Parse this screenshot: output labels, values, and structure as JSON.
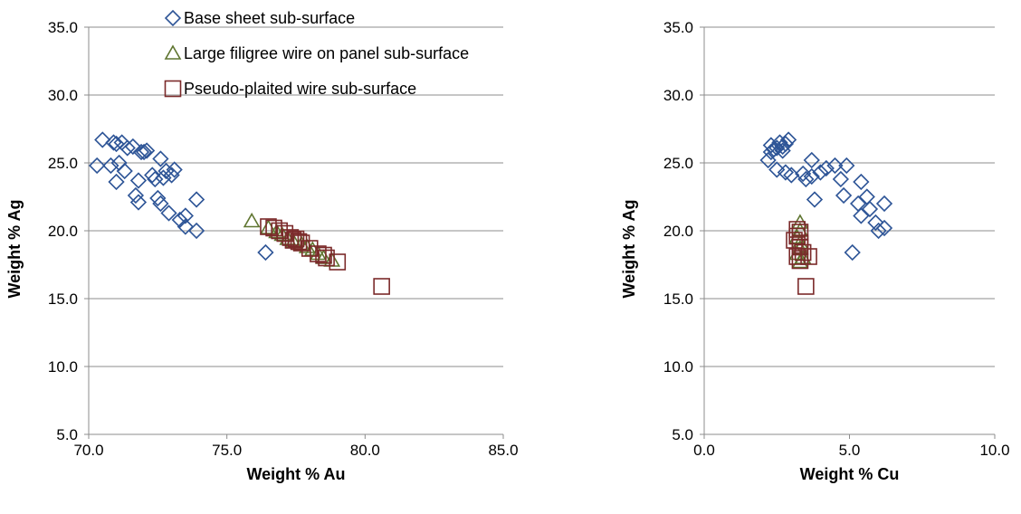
{
  "colors": {
    "base_sheet": "#2E5597",
    "filigree": "#5F7530",
    "pseudo_plaited": "#7B2A2A",
    "grid": "#8C8C8C"
  },
  "chart_data": [
    {
      "type": "scatter",
      "title": "",
      "xlabel": "Weight % Au",
      "ylabel": "Weight % Ag",
      "xlim": [
        70,
        85
      ],
      "ylim": [
        5,
        35
      ],
      "xticks": [
        "70.0",
        "75.0",
        "80.0",
        "85.0"
      ],
      "yticks": [
        "5.0",
        "10.0",
        "15.0",
        "20.0",
        "25.0",
        "30.0",
        "35.0"
      ],
      "grid": "horizontal",
      "legend": "top-left",
      "series": [
        {
          "name": "Base sheet sub-surface",
          "marker": "diamond",
          "points": [
            [
              70.3,
              24.8
            ],
            [
              70.5,
              26.7
            ],
            [
              70.8,
              24.8
            ],
            [
              70.9,
              26.5
            ],
            [
              71.0,
              26.4
            ],
            [
              71.0,
              23.6
            ],
            [
              71.1,
              25.0
            ],
            [
              71.2,
              26.5
            ],
            [
              71.3,
              24.4
            ],
            [
              71.4,
              26.1
            ],
            [
              71.6,
              26.2
            ],
            [
              71.7,
              22.6
            ],
            [
              71.8,
              22.1
            ],
            [
              71.8,
              23.7
            ],
            [
              71.9,
              25.8
            ],
            [
              72.0,
              25.8
            ],
            [
              72.1,
              25.9
            ],
            [
              72.3,
              24.1
            ],
            [
              72.4,
              23.8
            ],
            [
              72.5,
              22.4
            ],
            [
              72.6,
              25.3
            ],
            [
              72.6,
              22.0
            ],
            [
              72.7,
              23.9
            ],
            [
              72.8,
              24.4
            ],
            [
              72.9,
              21.3
            ],
            [
              73.0,
              24.1
            ],
            [
              73.1,
              24.5
            ],
            [
              73.3,
              20.8
            ],
            [
              73.5,
              21.1
            ],
            [
              73.5,
              20.3
            ],
            [
              73.9,
              22.3
            ],
            [
              73.9,
              20.0
            ],
            [
              76.4,
              18.4
            ]
          ]
        },
        {
          "name": "Large filigree wire on panel sub-surface",
          "marker": "triangle",
          "points": [
            [
              75.9,
              20.7
            ],
            [
              76.5,
              20.2
            ],
            [
              76.8,
              19.9
            ],
            [
              77.0,
              19.7
            ],
            [
              77.2,
              19.4
            ],
            [
              77.4,
              19.2
            ],
            [
              77.7,
              19.0
            ],
            [
              77.9,
              18.8
            ],
            [
              78.1,
              18.6
            ],
            [
              78.3,
              18.3
            ],
            [
              78.5,
              18.0
            ],
            [
              78.8,
              17.8
            ]
          ]
        },
        {
          "name": "Pseudo-plaited wire  sub-surface",
          "marker": "square",
          "points": [
            [
              76.5,
              20.3
            ],
            [
              76.7,
              20.2
            ],
            [
              76.9,
              20.0
            ],
            [
              77.1,
              19.8
            ],
            [
              77.3,
              19.5
            ],
            [
              77.4,
              19.3
            ],
            [
              77.5,
              19.4
            ],
            [
              77.6,
              19.2
            ],
            [
              77.7,
              19.1
            ],
            [
              78.0,
              18.7
            ],
            [
              78.3,
              18.3
            ],
            [
              78.5,
              18.2
            ],
            [
              78.6,
              18.0
            ],
            [
              79.0,
              17.7
            ],
            [
              80.6,
              15.9
            ]
          ]
        }
      ]
    },
    {
      "type": "scatter",
      "title": "",
      "xlabel": "Weight % Cu",
      "ylabel": "Weight % Ag",
      "xlim": [
        0,
        10
      ],
      "ylim": [
        5,
        35
      ],
      "xticks": [
        "0.0",
        "5.0",
        "10.0"
      ],
      "yticks": [
        "5.0",
        "10.0",
        "15.0",
        "20.0",
        "25.0",
        "30.0",
        "35.0"
      ],
      "grid": "horizontal",
      "series": [
        {
          "name": "Base sheet sub-surface",
          "marker": "diamond",
          "points": [
            [
              2.2,
              25.2
            ],
            [
              2.3,
              25.8
            ],
            [
              2.3,
              26.3
            ],
            [
              2.4,
              26.0
            ],
            [
              2.5,
              24.5
            ],
            [
              2.5,
              26.1
            ],
            [
              2.6,
              26.5
            ],
            [
              2.7,
              26.2
            ],
            [
              2.7,
              25.9
            ],
            [
              2.8,
              26.4
            ],
            [
              2.8,
              24.3
            ],
            [
              2.9,
              26.7
            ],
            [
              3.0,
              24.1
            ],
            [
              3.4,
              24.2
            ],
            [
              3.5,
              23.8
            ],
            [
              3.7,
              25.2
            ],
            [
              3.7,
              24.0
            ],
            [
              3.8,
              22.3
            ],
            [
              4.0,
              24.3
            ],
            [
              4.2,
              24.6
            ],
            [
              4.5,
              24.8
            ],
            [
              4.7,
              23.8
            ],
            [
              4.8,
              22.6
            ],
            [
              4.9,
              24.8
            ],
            [
              5.1,
              18.4
            ],
            [
              5.3,
              22.0
            ],
            [
              5.4,
              23.6
            ],
            [
              5.4,
              21.1
            ],
            [
              5.6,
              22.5
            ],
            [
              5.7,
              21.6
            ],
            [
              5.9,
              20.6
            ],
            [
              6.0,
              20.0
            ],
            [
              6.2,
              22.0
            ],
            [
              6.2,
              20.2
            ]
          ]
        },
        {
          "name": "Large filigree wire on panel sub-surface",
          "marker": "triangle",
          "points": [
            [
              3.3,
              20.6
            ],
            [
              3.3,
              20.0
            ],
            [
              3.2,
              19.5
            ],
            [
              3.3,
              19.1
            ],
            [
              3.3,
              18.7
            ],
            [
              3.2,
              18.3
            ],
            [
              3.4,
              18.0
            ],
            [
              3.3,
              17.7
            ]
          ]
        },
        {
          "name": "Pseudo-plaited wire  sub-surface",
          "marker": "square",
          "points": [
            [
              3.1,
              19.3
            ],
            [
              3.2,
              20.1
            ],
            [
              3.2,
              19.6
            ],
            [
              3.3,
              19.9
            ],
            [
              3.3,
              19.1
            ],
            [
              3.3,
              18.8
            ],
            [
              3.2,
              18.1
            ],
            [
              3.4,
              18.4
            ],
            [
              3.3,
              17.8
            ],
            [
              3.6,
              18.1
            ],
            [
              3.5,
              15.9
            ]
          ]
        }
      ]
    }
  ]
}
